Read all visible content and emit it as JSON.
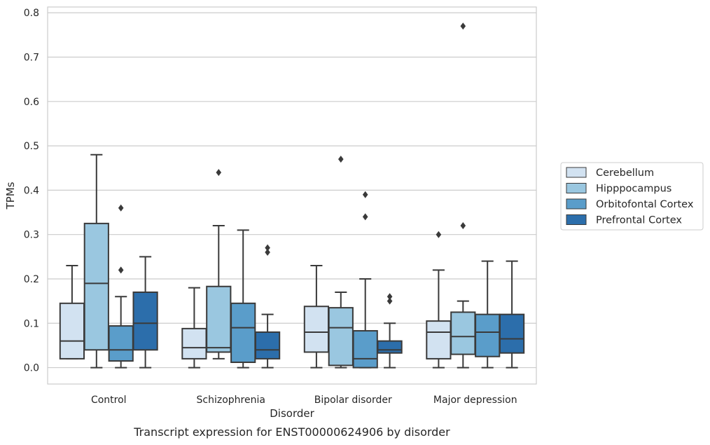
{
  "chart_data": {
    "type": "boxplot",
    "title": "",
    "caption": "Transcript expression for ENST00000624906 by disorder",
    "xlabel": "Disorder",
    "ylabel": "TPMs",
    "ylim": [
      -0.037,
      0.813
    ],
    "yticks": [
      0.0,
      0.1,
      0.2,
      0.3,
      0.4,
      0.5,
      0.6,
      0.7,
      0.8
    ],
    "ytick_labels": [
      "0.0",
      "0.1",
      "0.2",
      "0.3",
      "0.4",
      "0.5",
      "0.6",
      "0.7",
      "0.8"
    ],
    "grid": "horizontal",
    "legend_placement": "right",
    "categories": [
      "Control",
      "Schizophrenia",
      "Bipolar disorder",
      "Major depression"
    ],
    "series": [
      {
        "name": "Cerebellum",
        "color": "#d2e2f1",
        "boxes": [
          {
            "whislo": 0.02,
            "q1": 0.02,
            "med": 0.06,
            "q3": 0.145,
            "whishi": 0.23,
            "fliers": []
          },
          {
            "whislo": 0.0,
            "q1": 0.02,
            "med": 0.045,
            "q3": 0.088,
            "whishi": 0.18,
            "fliers": []
          },
          {
            "whislo": 0.0,
            "q1": 0.035,
            "med": 0.08,
            "q3": 0.138,
            "whishi": 0.23,
            "fliers": []
          },
          {
            "whislo": 0.0,
            "q1": 0.02,
            "med": 0.08,
            "q3": 0.105,
            "whishi": 0.22,
            "fliers": [
              0.3
            ]
          }
        ]
      },
      {
        "name": "Hipppocampus",
        "color": "#9ac7e0",
        "boxes": [
          {
            "whislo": 0.0,
            "q1": 0.04,
            "med": 0.19,
            "q3": 0.325,
            "whishi": 0.48,
            "fliers": []
          },
          {
            "whislo": 0.02,
            "q1": 0.035,
            "med": 0.045,
            "q3": 0.183,
            "whishi": 0.32,
            "fliers": [
              0.44
            ]
          },
          {
            "whislo": 0.0,
            "q1": 0.005,
            "med": 0.09,
            "q3": 0.135,
            "whishi": 0.17,
            "fliers": [
              0.47
            ]
          },
          {
            "whislo": 0.0,
            "q1": 0.03,
            "med": 0.07,
            "q3": 0.125,
            "whishi": 0.15,
            "fliers": [
              0.32,
              0.77
            ]
          }
        ]
      },
      {
        "name": "Orbitofontal Cortex",
        "color": "#5a9dca",
        "boxes": [
          {
            "whislo": 0.0,
            "q1": 0.015,
            "med": 0.04,
            "q3": 0.094,
            "whishi": 0.16,
            "fliers": [
              0.22,
              0.36
            ]
          },
          {
            "whislo": 0.0,
            "q1": 0.012,
            "med": 0.09,
            "q3": 0.145,
            "whishi": 0.31,
            "fliers": []
          },
          {
            "whislo": 0.0,
            "q1": 0.0,
            "med": 0.02,
            "q3": 0.083,
            "whishi": 0.2,
            "fliers": [
              0.34,
              0.39
            ]
          },
          {
            "whislo": 0.0,
            "q1": 0.025,
            "med": 0.08,
            "q3": 0.12,
            "whishi": 0.24,
            "fliers": []
          }
        ]
      },
      {
        "name": "Prefrontal Cortex",
        "color": "#2c6eab",
        "boxes": [
          {
            "whislo": 0.0,
            "q1": 0.04,
            "med": 0.1,
            "q3": 0.17,
            "whishi": 0.25,
            "fliers": []
          },
          {
            "whislo": 0.0,
            "q1": 0.02,
            "med": 0.04,
            "q3": 0.08,
            "whishi": 0.12,
            "fliers": [
              0.26,
              0.27
            ]
          },
          {
            "whislo": 0.0,
            "q1": 0.033,
            "med": 0.04,
            "q3": 0.06,
            "whishi": 0.1,
            "fliers": [
              0.15,
              0.16
            ]
          },
          {
            "whislo": 0.0,
            "q1": 0.033,
            "med": 0.065,
            "q3": 0.12,
            "whishi": 0.24,
            "fliers": []
          }
        ]
      }
    ]
  }
}
